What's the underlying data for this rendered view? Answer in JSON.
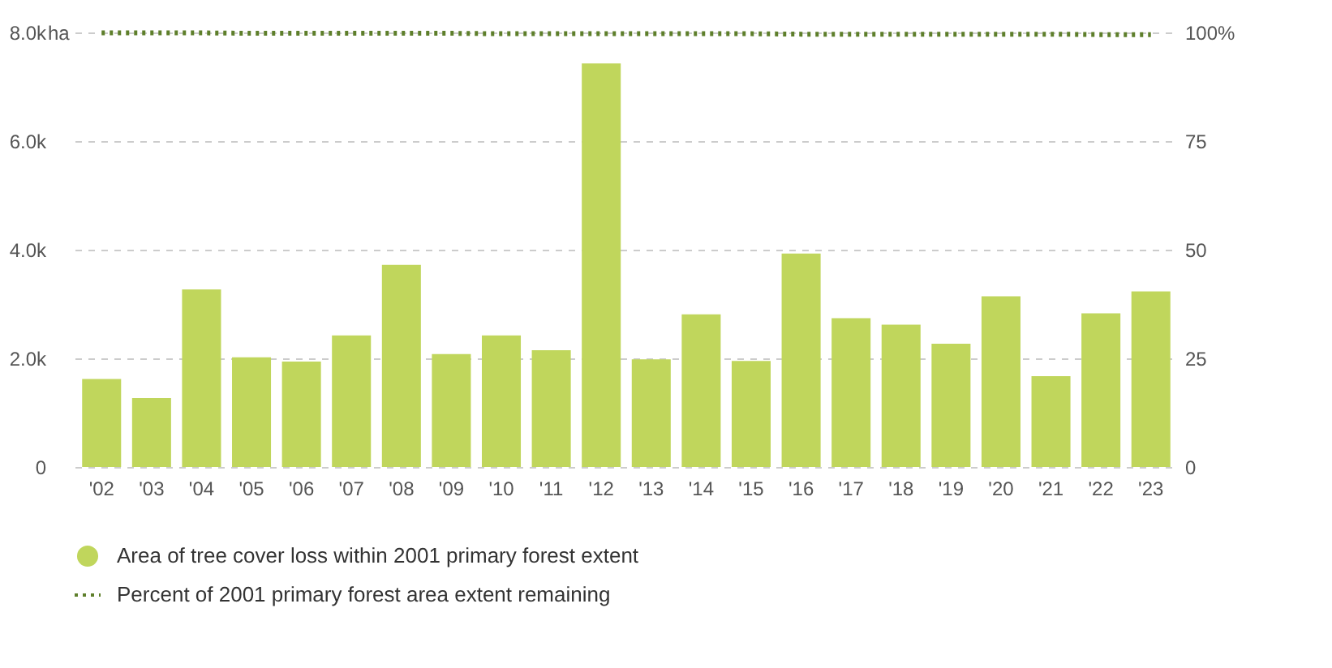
{
  "chart_data": {
    "type": "bar",
    "categories": [
      "'02",
      "'03",
      "'04",
      "'05",
      "'06",
      "'07",
      "'08",
      "'09",
      "'10",
      "'11",
      "'12",
      "'13",
      "'14",
      "'15",
      "'16",
      "'17",
      "'18",
      "'19",
      "'20",
      "'21",
      "'22",
      "'23"
    ],
    "series": [
      {
        "name": "Area of tree cover loss within 2001 primary forest extent",
        "color": "#c0d65c",
        "values": [
          1620,
          1270,
          3270,
          2020,
          1940,
          2420,
          3720,
          2080,
          2420,
          2150,
          7430,
          1980,
          2810,
          1950,
          3930,
          2740,
          2620,
          2270,
          3140,
          1670,
          2830,
          3230
        ]
      },
      {
        "name": "Percent of 2001 primary forest area extent remaining",
        "type": "line",
        "axis": "y2",
        "color": "#5e7f2b",
        "line_style": "dotted",
        "marker": "none",
        "values": [
          99.9,
          99.9,
          99.9,
          99.8,
          99.8,
          99.8,
          99.8,
          99.8,
          99.7,
          99.7,
          99.7,
          99.7,
          99.7,
          99.7,
          99.6,
          99.6,
          99.6,
          99.6,
          99.6,
          99.6,
          99.5,
          99.5
        ]
      }
    ],
    "ylim": [
      0,
      8000
    ],
    "yticks": [
      0,
      {
        "value": 2000,
        "label": "2.0k"
      },
      {
        "value": 4000,
        "label": "4.0k"
      },
      {
        "value": 6000,
        "label": "6.0k"
      },
      {
        "value": 8000,
        "label": "8.0k"
      }
    ],
    "ylabel": "ha",
    "y2lim": [
      0,
      100
    ],
    "y2ticks": [
      0,
      25,
      50,
      75,
      {
        "value": 100,
        "label": "100%"
      }
    ],
    "grid": "y",
    "legend": "bottom left"
  }
}
